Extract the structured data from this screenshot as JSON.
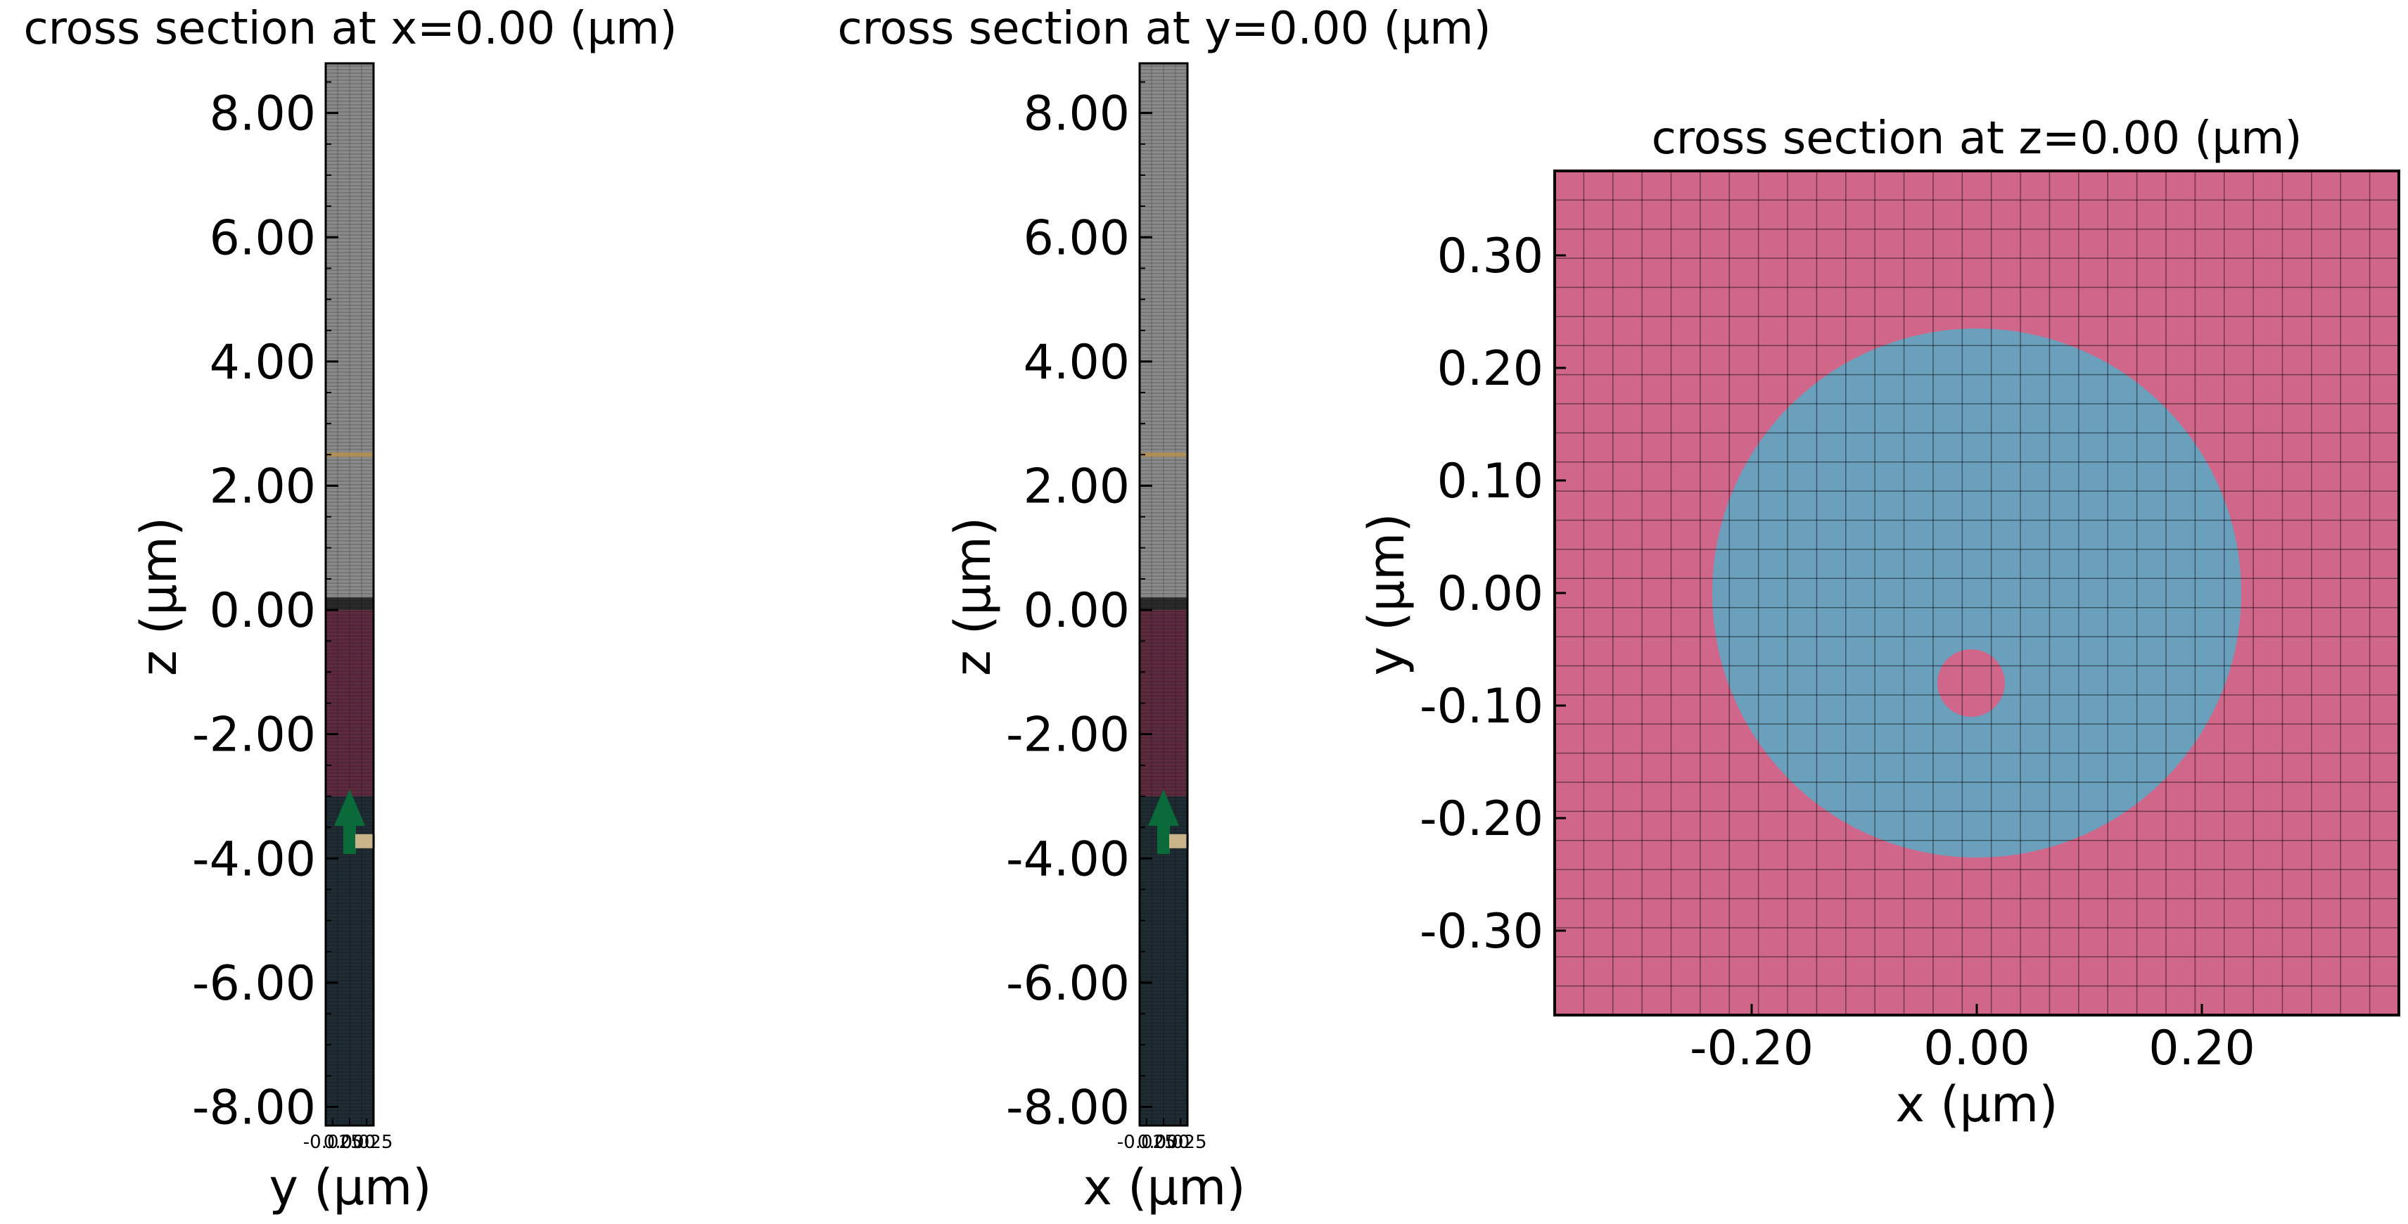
{
  "chart_data": [
    {
      "type": "cross-section",
      "title": "cross section at x=0.00 (μm)",
      "xlabel": "y (μm)",
      "ylabel": "z (μm)",
      "xlim": [
        -0.035,
        0.035
      ],
      "ylim": [
        -8.3,
        8.8
      ],
      "yticks": [
        8.0,
        6.0,
        4.0,
        2.0,
        0.0,
        -2.0,
        -4.0,
        -6.0,
        -8.0
      ],
      "ytick_labels": [
        "8.00",
        "6.00",
        "4.00",
        "2.00",
        "0.00",
        "-2.00",
        "-4.00",
        "-6.00",
        "-8.00"
      ],
      "xticks": [
        -0.025,
        0.0,
        0.025
      ],
      "xtick_labels": [
        "-0.025",
        "0.000",
        "0.025"
      ],
      "regions": [
        {
          "name": "upper",
          "z0": 0.2,
          "z1": 8.8,
          "color": "#8a8a8a"
        },
        {
          "name": "gap",
          "z0": 0.0,
          "z1": 0.2,
          "color": "#2a2a2a"
        },
        {
          "name": "structure",
          "z0": -3.0,
          "z1": 0.0,
          "color": "#5e2b3e"
        },
        {
          "name": "substrate",
          "z0": -8.3,
          "z1": -3.0,
          "color": "#1f2c33"
        }
      ],
      "source_z": -3.0,
      "monitor_z": -3.7,
      "line_z": 2.5
    },
    {
      "type": "cross-section",
      "title": "cross section at y=0.00 (μm)",
      "xlabel": "x (μm)",
      "ylabel": "z (μm)",
      "xlim": [
        -0.035,
        0.035
      ],
      "ylim": [
        -8.3,
        8.8
      ],
      "yticks": [
        8.0,
        6.0,
        4.0,
        2.0,
        0.0,
        -2.0,
        -4.0,
        -6.0,
        -8.0
      ],
      "ytick_labels": [
        "8.00",
        "6.00",
        "4.00",
        "2.00",
        "0.00",
        "-2.00",
        "-4.00",
        "-6.00",
        "-8.00"
      ],
      "xticks": [
        -0.025,
        0.0,
        0.025
      ],
      "xtick_labels": [
        "-0.025",
        "0.000",
        "0.025"
      ],
      "regions": [
        {
          "name": "upper",
          "z0": 0.2,
          "z1": 8.8,
          "color": "#8a8a8a"
        },
        {
          "name": "gap",
          "z0": 0.0,
          "z1": 0.2,
          "color": "#2a2a2a"
        },
        {
          "name": "structure",
          "z0": -3.0,
          "z1": 0.0,
          "color": "#5e2b3e"
        },
        {
          "name": "substrate",
          "z0": -8.3,
          "z1": -3.0,
          "color": "#1f2c33"
        }
      ],
      "source_z": -3.0,
      "monitor_z": -3.7,
      "line_z": 2.5
    },
    {
      "type": "cross-section",
      "title": "cross section at z=0.00 (μm)",
      "xlabel": "x (μm)",
      "ylabel": "y (μm)",
      "xlim": [
        -0.375,
        0.375
      ],
      "ylim": [
        -0.375,
        0.375
      ],
      "xticks": [
        -0.2,
        0.0,
        0.2
      ],
      "xtick_labels": [
        "-0.20",
        "0.00",
        "0.20"
      ],
      "yticks": [
        0.3,
        0.2,
        0.1,
        0.0,
        -0.1,
        -0.2,
        -0.3
      ],
      "ytick_labels": [
        "0.30",
        "0.20",
        "0.10",
        "0.00",
        "-0.10",
        "-0.20",
        "-0.30"
      ],
      "background_color": "#d0668a",
      "disk": {
        "cx": 0.0,
        "cy": 0.0,
        "r": 0.235,
        "color": "#6ba0bd"
      },
      "hole": {
        "cx": -0.005,
        "cy": -0.08,
        "r": 0.03,
        "color": "#d0668a"
      },
      "grid_cells": 29
    }
  ]
}
